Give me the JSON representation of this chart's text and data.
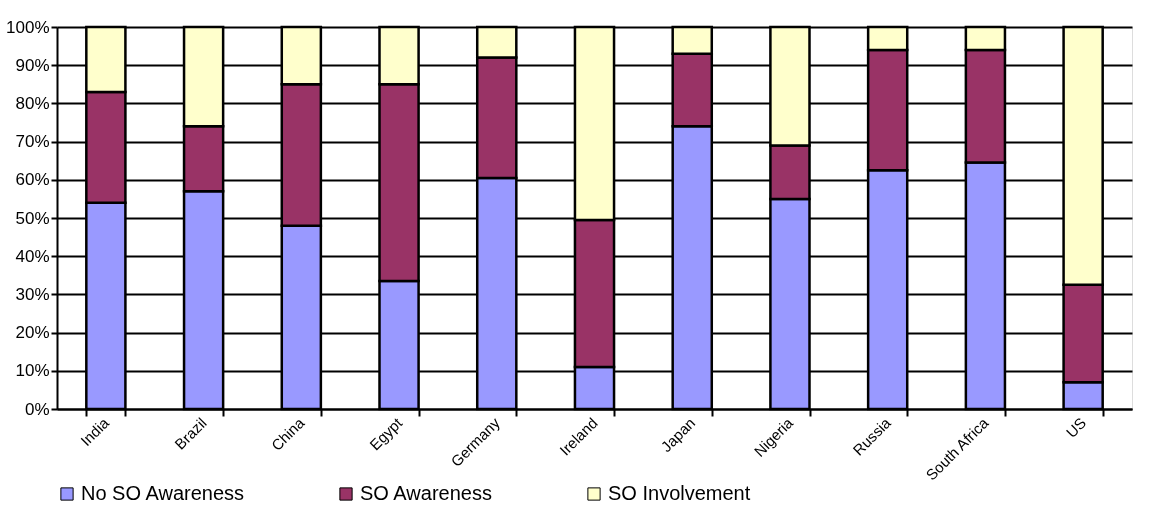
{
  "chart_data": {
    "type": "bar",
    "stacked": true,
    "categories": [
      "India",
      "Brazil",
      "China",
      "Egypt",
      "Germany",
      "Ireland",
      "Japan",
      "Nigeria",
      "Russia",
      "South Africa",
      "US"
    ],
    "series": [
      {
        "name": "No SO Awareness",
        "color": "#9999ff",
        "values": [
          54,
          57,
          48,
          33.5,
          60.5,
          11,
          74,
          55,
          62.5,
          64.5,
          7
        ]
      },
      {
        "name": "SO Awareness",
        "color": "#993366",
        "values": [
          29,
          17,
          37,
          51.5,
          31.5,
          38.5,
          19,
          14,
          31.5,
          29.5,
          25.5
        ]
      },
      {
        "name": "SO Involvement",
        "color": "#ffffcc",
        "values": [
          17,
          26,
          15,
          15,
          8,
          50.5,
          7,
          31,
          6,
          6,
          67.5
        ]
      }
    ],
    "ylim": [
      0,
      100
    ],
    "yticks": [
      {
        "value": 0,
        "label": "0%"
      },
      {
        "value": 10,
        "label": "10%"
      },
      {
        "value": 20,
        "label": "20%"
      },
      {
        "value": 30,
        "label": "30%"
      },
      {
        "value": 40,
        "label": "40%"
      },
      {
        "value": 50,
        "label": "50%"
      },
      {
        "value": 60,
        "label": "60%"
      },
      {
        "value": 70,
        "label": "70%"
      },
      {
        "value": 80,
        "label": "80%"
      },
      {
        "value": 90,
        "label": "90%"
      },
      {
        "value": 100,
        "label": "100%"
      }
    ],
    "grid": "y",
    "legend": "bottom"
  }
}
